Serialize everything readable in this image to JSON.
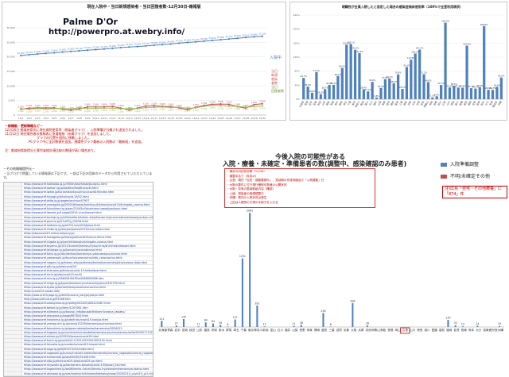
{
  "trend_panel": {
    "title": "現在入院中・当日新規感染者・当日回復者数-12月30日-確報版",
    "watermark_name": "Palme D'Or",
    "watermark_url": "http://powerpro.at.webry.info/",
    "legend": [
      "入院中",
      "当日\n新規\n感染\n者数",
      "当日\n回復者数"
    ],
    "colors": {
      "inpatient": "#4f81bd",
      "new": "#c0504d",
      "recovered": "#9bbb59"
    }
  },
  "bar1_panel": {
    "title": "現職性が全員入院したと仮定した場合の感染症病床使用率（100%で全室利用現状）",
    "color": "#4f81bd"
  },
  "note_panel": {
    "line1": "－新機能・更新情報など－",
    "line2": "12月26日 都道府県別に現在病院使用率（感染者グラフ）、入院準備が分離され追加されました。",
    "line3": "11月12日 現在陽性者の推移表に急増推移（赤棒グラフ）を追加しました。",
    "line4": "グラフの位置を個別に移動しました。",
    "line5": "PCグラフ中に全計数値を追加。現陽性グラフ最新の入院数の「最新版」を追加。",
    "line6": "注：都道府県取得分と厚労省統計値比較の数値が高い場合あり。"
  },
  "links_panel": {
    "heading": "－その他情報提供元－",
    "intro": "・当ブログで掲載している情報源は下記です。一部は下記の団体のデータから利用させていただいています。",
    "rows": [
      "https://www.pref.hokkaido.lg.jp/hf/kth/kak/hasseijoukyou.html",
      "https://www.pref.aomori.lg.jp/welfare/health/covid.html",
      "https://www.pref.iwate.jp/kurashikankyou/iryou/covid19/index.html",
      "https://www.pref.miyagi.jp/site/covid-19/02.html",
      "https://www.pref.akita.lg.jp/pages/archive/47957",
      "https://www.pref.yamagata.jp/090016/bosai/kochibou/kikikanri/covid19/shingata_corona.html",
      "https://www.pref.fukushima.lg.jp/sec/21045c/fukushima-hasseijyoukyou.html",
      "https://www.pref.ibaraki.jp/1saigai/2019-ncov/hassei.html",
      "https://www.pref.tochigi.lg.jp/e04/welfare/hoken-eisei/kansen/hp/coronakensahasseijyoukyou.html",
      "https://www.pref.gunma.jp/07/z87g_00016.html",
      "https://www.pref.saitama.lg.jp/a0701/covid19/jokyo.html",
      "https://www.pref.chiba.lg.jp/shippei/press/2019/ncov-index.html",
      "https://stopcovid19.metro.tokyo.lg.jp/",
      "https://www.pref.kanagawa.jp/docs/ga4/covid19/occurrence.html",
      "https://www.pref.niigata.lg.jp/sec/kikitaisaku/shingata-corona.html",
      "https://www.pref.toyama.jp/1021/kurashi/kenkou/iryou/virus/shinchaku/hassei.html",
      "https://www.pref.ishikawa.lg.jp/kansen/coronakennai.html",
      "https://www.pref.fukui.lg.jp/doc/kenkou/kansensyo-yobousessyu/corona.html",
      "https://www.pref.yamanashi.jp/koucho/coronavirus/info_coronavirus.html",
      "https://www.pref.nagano.lg.jp/hoken-shippei/kenko/kenko/kansensho/joho/corona-doko.html",
      "https://www.pref.gifu.lg.jp/site/covid19/",
      "https://www.pref.shizuoka.jp/kinkyu/covid-19-keikailevel.html",
      "https://www.pref.aichi.jp/site/covid19-aichi/",
      "https://www.pref.mie.lg.jp/YAKUMUS/HP/m0068000066.htm",
      "https://www.pref.shiga.lg.jp/ippan/kenkouiryouhukushi/yakuzi/310735.html",
      "https://www.pref.kyoto.jp/kentai/news/novelcoronavirus.html",
      "https://covid19-osaka.info/",
      "https://web.pref.hyogo.lg.jp/kk03/corona_kanjyajyokyo.html",
      "http://www.pref.nara.jp/55168.htm",
      "https://www.pref.wakayama.lg.jp/prefg/041200/d00203387.html",
      "https://www.pref.tottori.lg.jp/item/1207061.htm",
      "https://www.pref.shimane.lg.jp/bousai_info/bousai/kikikanri/corona_taisaku/",
      "https://www.pref.okayama.jp/page/667843.html",
      "https://www.pref.hiroshima.lg.jp/site/hcdc/covid19-kanjya.html",
      "https://www.pref.yamaguchi.lg.jp/cms/a15200/kansensyou/ncorona.html",
      "https://www.pref.tokushima.lg.jp/ippannokata/kenko/kansensho/5034012",
      "https://www.pref.kagawa.lg.jp/content/etc/subsite/kansenshoujouhou/kansen/se9si9200517102553.shtml",
      "https://www.pref.ehime.jp/h25500/kansen/covid19.html",
      "https://www.pref.kochi.lg.jp/soshiki/111301/2020041300141.html",
      "https://www.pref.fukuoka.lg.jp/contents/covid19-hassei.html",
      "https://www.pref.saga.lg.jp/kiji00373220/index.html",
      "https://www.pref.nagasaki.jp/bunrui/hukushi-hoken/kansensho/corona_nagasaki/corona_nagasaki_shousai/",
      "https://www.pref.kumamoto.jp/soshiki/30/51440.html",
      "https://www.pref.oita.jp/site/covid19-oita/covid19-pcr.html",
      "https://www.pref.miyazaki.lg.jp/kansensho-taisaku/covid-19/hassei_list.html",
      "https://www.pref.kagoshima.jp/ae06/kenko-fukushi/kenko-iryo/kansen/kansensya-status.html",
      "https://www.pref.okinawa.lg.jp/site/hoken/chiikihoken/kekkaku/press/20200214_covid19_pr1.html"
    ]
  },
  "bar2_panel": {
    "title1": "今後入院の可能性がある",
    "title2": "入院・療養・未確定・準備患者の数(調整中、感染確認のみ患者)",
    "legend_a": "入院準備調整",
    "legend_b": "不明/未確定その他",
    "note_box_lines": [
      "・東京の対応状況等（11/30）",
      "・調整中あり（年末の）",
      "・広島：現在「自宅・調整要請中」、見延期の作成待機及び「入院調整」日",
      "・大阪の要件に付き現行確率を数値の公開状況",
      "・大阪・奈良の患者取組内容（確認）",
      "・上級：感染者の経緯調整中",
      "・沖縄：県内の入院状況は発生",
      "・上記は人数別の方策の手続きを入れる"
    ],
    "hiroshima_note": "注)広島「自宅・その他療養」に「874」件",
    "color_a": "#4f81bd",
    "color_b": "#c0504d"
  },
  "chart_data": [
    {
      "type": "line",
      "title": "現在入院中・当日新規感染者・当日回復者数-12月30日-確報版",
      "x": [
        "12/1",
        "12/2",
        "12/3",
        "12/4",
        "12/5",
        "12/6",
        "12/7",
        "12/8",
        "12/9",
        "12/10",
        "12/11",
        "12/12",
        "12/13",
        "12/14",
        "12/15",
        "12/16",
        "12/17",
        "12/18",
        "12/19",
        "12/20",
        "12/21",
        "12/22",
        "12/23",
        "12/24",
        "12/25",
        "12/26",
        "12/27",
        "12/28",
        "12/29",
        "12/30"
      ],
      "series": [
        {
          "name": "入院中",
          "values": [
            20500,
            20750,
            21000,
            21200,
            21400,
            21650,
            21900,
            22100,
            22300,
            22500,
            22700,
            22950,
            23200,
            23400,
            23550,
            23750,
            24000,
            24200,
            24450,
            24700,
            24950,
            25150,
            25400,
            25650,
            25900,
            26150,
            26400,
            26650,
            26900,
            27100
          ]
        },
        {
          "name": "当日新規感染者数",
          "values": [
            2000,
            2400,
            2500,
            2450,
            2500,
            2050,
            1700,
            2100,
            2800,
            2800,
            2800,
            3000,
            2400,
            1700,
            2400,
            3100,
            3200,
            3000,
            2900,
            2500,
            1800,
            2700,
            3300,
            3700,
            3800,
            3700,
            2900,
            2400,
            3600,
            3900
          ]
        },
        {
          "name": "当日回復者数",
          "values": [
            2200,
            2000,
            2300,
            2100,
            2200,
            2300,
            2100,
            2500,
            2200,
            2300,
            2400,
            2400,
            2100,
            2300,
            2200,
            2600,
            2700,
            2800,
            2600,
            2700,
            2300,
            2500,
            3000,
            3400,
            3200,
            3100,
            3000,
            2700,
            2900,
            3100
          ]
        }
      ],
      "ylim": [
        0,
        30000
      ]
    },
    {
      "type": "bar",
      "title": "現職性が全員入院したと仮定した場合の感染症病床使用率（100%で全室利用現状）",
      "categories": [
        "北海道",
        "青森",
        "岩手",
        "宮城",
        "秋田",
        "山形",
        "福島",
        "茨城",
        "栃木",
        "群馬",
        "埼玉",
        "千葉",
        "東京",
        "神奈川",
        "新潟",
        "富山",
        "石川",
        "福井",
        "山梨",
        "長野",
        "岐阜",
        "静岡",
        "愛知",
        "三重",
        "滋賀",
        "京都",
        "大阪",
        "兵庫",
        "奈良",
        "和歌山",
        "鳥取",
        "島根",
        "岡山",
        "広島",
        "山口",
        "徳島",
        "香川",
        "愛媛",
        "高知",
        "福岡",
        "佐賀",
        "長崎",
        "熊本",
        "大分",
        "宮崎",
        "鹿児島",
        "沖縄"
      ],
      "values": [
        60.7,
        35.9,
        18.6,
        77.4,
        14.3,
        28.7,
        40.8,
        41.0,
        66.2,
        89.0,
        155.5,
        157.1,
        141.0,
        131.5,
        28.4,
        22.3,
        49.6,
        4.8,
        32.0,
        57.0,
        59.1,
        45.5,
        70.9,
        29.2,
        91.6,
        112.8,
        130.3,
        141.5,
        71.2,
        48.8,
        5.1,
        8.4,
        40.7,
        218.3,
        33.2,
        38.5,
        33.1,
        32.8,
        152.8,
        31.4,
        30.4,
        34.5,
        208.6,
        26.8,
        26.7,
        35.4,
        62.0
      ],
      "ylim": [
        0,
        240
      ]
    },
    {
      "type": "bar",
      "title": "今後入院の可能性がある 入院・療養・未確定・準備患者の数(調整中、感染確認のみ患者)",
      "categories": [
        "北海道",
        "青森",
        "岩手",
        "宮城",
        "秋田",
        "山形",
        "福島",
        "茨城",
        "栃木",
        "群馬",
        "埼玉",
        "千葉",
        "東京",
        "神奈川",
        "新潟",
        "富山",
        "石川",
        "福井",
        "山梨",
        "長野",
        "岐阜",
        "静岡",
        "愛知",
        "三重",
        "滋賀",
        "京都",
        "大阪",
        "兵庫",
        "奈良",
        "和歌山",
        "鳥取",
        "島根",
        "岡山",
        "広島",
        "山口",
        "徳島",
        "香川",
        "愛媛",
        "高知",
        "福岡",
        "佐賀",
        "長崎",
        "熊本",
        "大分",
        "宮崎",
        "鹿児島",
        "沖縄"
      ],
      "series": [
        {
          "name": "入院準備調整",
          "values": [
            111,
            0,
            27,
            145,
            0,
            11,
            84,
            64,
            39,
            8,
            137,
            1251,
            2081,
            391,
            11,
            0,
            0,
            0,
            21,
            38,
            0,
            0,
            256,
            8,
            0,
            0,
            436,
            0,
            28,
            0,
            0,
            0,
            0,
            0,
            0,
            0,
            0,
            0,
            0,
            130,
            33,
            13,
            0,
            24,
            0,
            0,
            19
          ]
        },
        {
          "name": "不明/未確定その他",
          "values": [
            0,
            0,
            0,
            0,
            0,
            0,
            0,
            0,
            0,
            0,
            0,
            0,
            0,
            0,
            0,
            0,
            0,
            0,
            0,
            0,
            0,
            0,
            0,
            0,
            0,
            0,
            0,
            0,
            0,
            0,
            0,
            0,
            0,
            0,
            0,
            0,
            0,
            0,
            0,
            0,
            0,
            0,
            0,
            0,
            0,
            0,
            0
          ]
        }
      ],
      "labels": [
        {
          "value": "111"
        },
        {
          "value": "27"
        },
        {
          "value": "145"
        },
        {
          "value": "84"
        },
        {
          "value": "64"
        },
        {
          "value": "39"
        },
        {
          "value": "137"
        },
        {
          "value": "1251"
        },
        {
          "value": "2081"
        },
        {
          "value": "391"
        },
        {
          "value": "256"
        },
        {
          "value": "436"
        },
        {
          "value": "130"
        }
      ]
    }
  ]
}
